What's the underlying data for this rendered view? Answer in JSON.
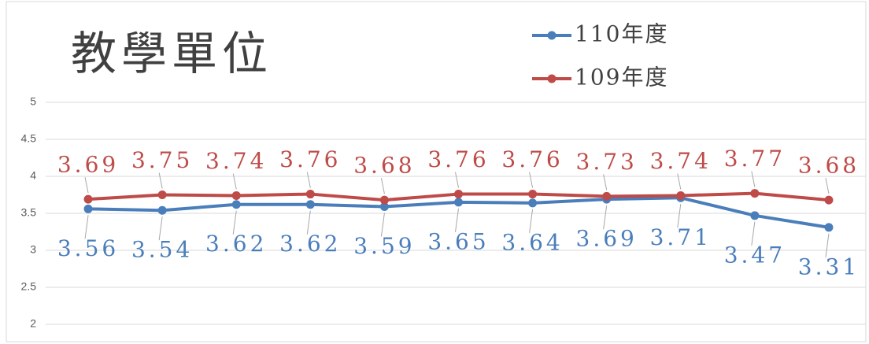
{
  "chart_data": {
    "type": "line",
    "title": "教學單位",
    "categories": [
      null,
      null,
      null,
      null,
      null,
      null,
      null,
      null,
      null,
      null,
      null
    ],
    "series": [
      {
        "name": "110年度",
        "color": "#4a7ebb",
        "values": [
          3.56,
          3.54,
          3.62,
          3.62,
          3.59,
          3.65,
          3.64,
          3.69,
          3.71,
          3.47,
          3.31
        ]
      },
      {
        "name": "109年度",
        "color": "#be4b48",
        "values": [
          3.69,
          3.75,
          3.74,
          3.76,
          3.68,
          3.76,
          3.76,
          3.73,
          3.74,
          3.77,
          3.68
        ]
      }
    ],
    "ylim": [
      2,
      5
    ],
    "yticks": [
      2,
      2.5,
      3,
      3.5,
      4,
      4.5,
      5
    ],
    "grid": true,
    "legend": "top-right",
    "data_labels": true
  }
}
